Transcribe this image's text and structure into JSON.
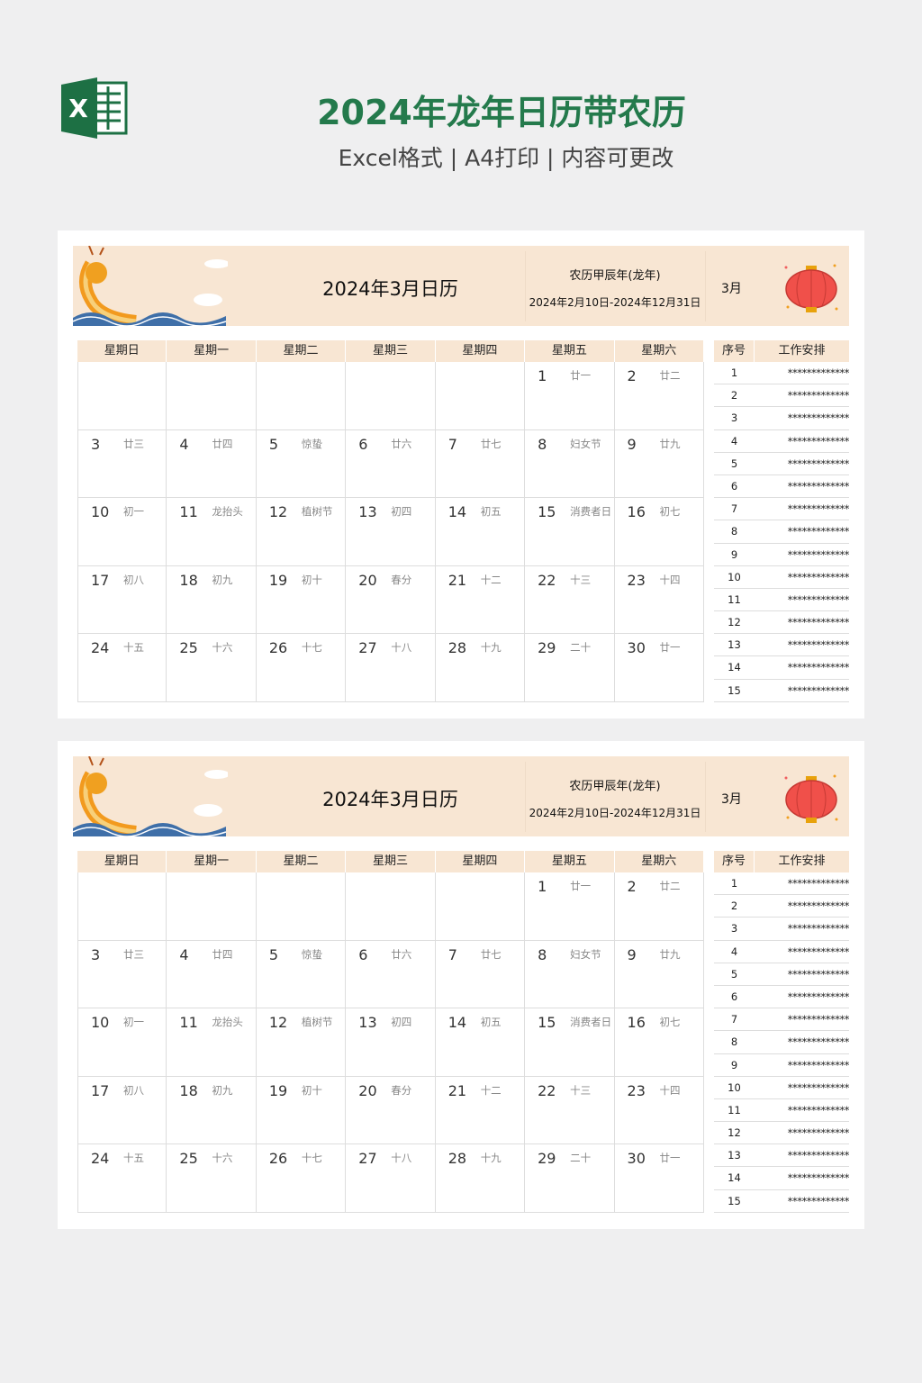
{
  "header": {
    "title": "2024年龙年日历带农历",
    "subtitle": "Excel格式 | A4打印 | 内容可更改",
    "logo_letter": "X"
  },
  "colors": {
    "title": "#247a4c",
    "band": "#f8e6d3",
    "excel_green": "#1d7044"
  },
  "calendar": {
    "title": "2024年3月日历",
    "lunar_year": "农历甲辰年(龙年)",
    "range": "2024年2月10日-2024年12月31日",
    "month": "3月",
    "weekdays": [
      "星期日",
      "星期一",
      "星期二",
      "星期三",
      "星期四",
      "星期五",
      "星期六"
    ],
    "weeks": [
      [
        null,
        null,
        null,
        null,
        null,
        {
          "d": "1",
          "l": "廿一"
        },
        {
          "d": "2",
          "l": "廿二"
        }
      ],
      [
        {
          "d": "3",
          "l": "廿三"
        },
        {
          "d": "4",
          "l": "廿四"
        },
        {
          "d": "5",
          "l": "惊蛰"
        },
        {
          "d": "6",
          "l": "廿六"
        },
        {
          "d": "7",
          "l": "廿七"
        },
        {
          "d": "8",
          "l": "妇女节"
        },
        {
          "d": "9",
          "l": "廿九"
        }
      ],
      [
        {
          "d": "10",
          "l": "初一"
        },
        {
          "d": "11",
          "l": "龙抬头"
        },
        {
          "d": "12",
          "l": "植树节"
        },
        {
          "d": "13",
          "l": "初四"
        },
        {
          "d": "14",
          "l": "初五"
        },
        {
          "d": "15",
          "l": "消费者日"
        },
        {
          "d": "16",
          "l": "初七"
        }
      ],
      [
        {
          "d": "17",
          "l": "初八"
        },
        {
          "d": "18",
          "l": "初九"
        },
        {
          "d": "19",
          "l": "初十"
        },
        {
          "d": "20",
          "l": "春分"
        },
        {
          "d": "21",
          "l": "十二"
        },
        {
          "d": "22",
          "l": "十三"
        },
        {
          "d": "23",
          "l": "十四"
        }
      ],
      [
        {
          "d": "24",
          "l": "十五"
        },
        {
          "d": "25",
          "l": "十六"
        },
        {
          "d": "26",
          "l": "十七"
        },
        {
          "d": "27",
          "l": "十八"
        },
        {
          "d": "28",
          "l": "十九"
        },
        {
          "d": "29",
          "l": "二十"
        },
        {
          "d": "30",
          "l": "廿一"
        }
      ]
    ],
    "side_headers": [
      "序号",
      "工作安排"
    ],
    "tasks": [
      {
        "n": "1",
        "t": "*************"
      },
      {
        "n": "2",
        "t": "*************"
      },
      {
        "n": "3",
        "t": "*************"
      },
      {
        "n": "4",
        "t": "*************"
      },
      {
        "n": "5",
        "t": "*************"
      },
      {
        "n": "6",
        "t": "*************"
      },
      {
        "n": "7",
        "t": "*************"
      },
      {
        "n": "8",
        "t": "*************"
      },
      {
        "n": "9",
        "t": "*************"
      },
      {
        "n": "10",
        "t": "*************"
      },
      {
        "n": "11",
        "t": "*************"
      },
      {
        "n": "12",
        "t": "*************"
      },
      {
        "n": "13",
        "t": "*************"
      },
      {
        "n": "14",
        "t": "*************"
      },
      {
        "n": "15",
        "t": "*************"
      }
    ]
  }
}
